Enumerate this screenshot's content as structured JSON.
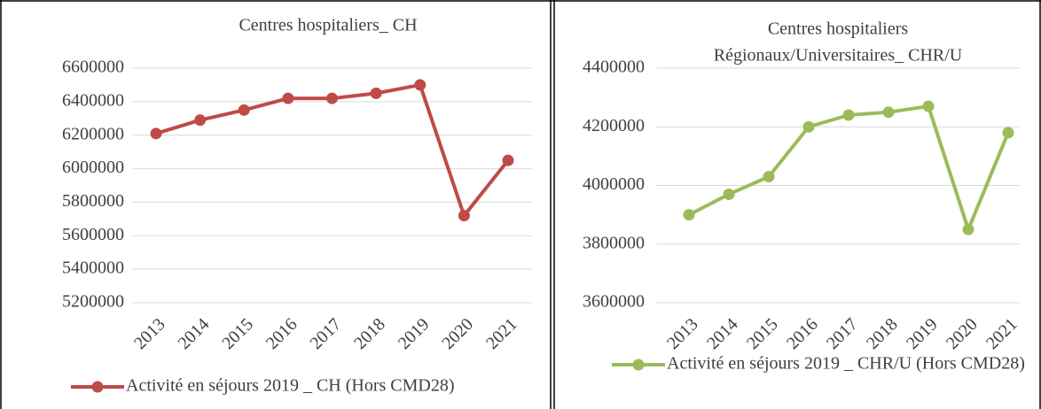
{
  "chart_data": [
    {
      "type": "line",
      "title": [
        "Centres hospitaliers_ CH"
      ],
      "categories": [
        "2013",
        "2014",
        "2015",
        "2016",
        "2017",
        "2018",
        "2019",
        "2020",
        "2021"
      ],
      "series": [
        {
          "name": "Activité en séjours 2019 _ CH (Hors CMD28)",
          "color": "#be4b48",
          "values": [
            6210000,
            6290000,
            6350000,
            6420000,
            6420000,
            6450000,
            6500000,
            5720000,
            6050000
          ]
        }
      ],
      "ylim": [
        5200000,
        6600000
      ],
      "yticks": [
        5200000,
        5400000,
        5600000,
        5800000,
        6000000,
        6200000,
        6400000,
        6600000
      ],
      "grid": true,
      "legend": "bottom"
    },
    {
      "type": "line",
      "title": [
        "Centres hospitaliers",
        "Régionaux/Universitaires_ CHR/U"
      ],
      "categories": [
        "2013",
        "2014",
        "2015",
        "2016",
        "2017",
        "2018",
        "2019",
        "2020",
        "2021"
      ],
      "series": [
        {
          "name": "Activité en séjours 2019 _ CHR/U  (Hors CMD28)",
          "color": "#9bbb59",
          "values": [
            3900000,
            3970000,
            4030000,
            4200000,
            4240000,
            4250000,
            4270000,
            3850000,
            4180000
          ]
        }
      ],
      "ylim": [
        3600000,
        4400000
      ],
      "yticks": [
        3600000,
        3800000,
        4000000,
        4200000,
        4400000
      ],
      "grid": true,
      "legend": "bottom"
    }
  ]
}
